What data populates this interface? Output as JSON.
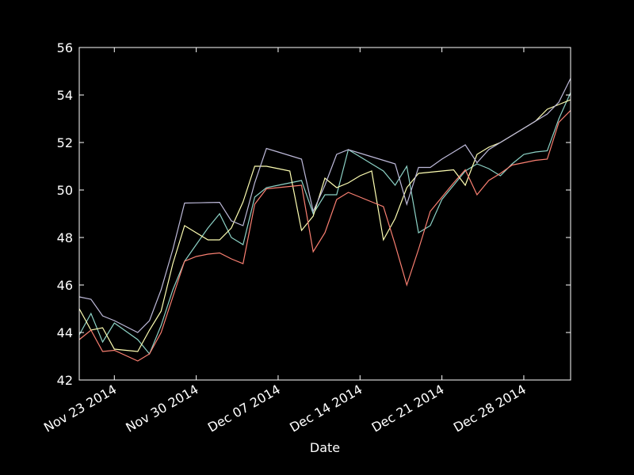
{
  "chart_data": {
    "type": "line",
    "xlabel": "Date",
    "ylabel": "",
    "title": "",
    "ylim": [
      42,
      56
    ],
    "xlim": [
      "2014-11-20",
      "2015-01-01"
    ],
    "y_ticks": [
      42,
      44,
      46,
      48,
      50,
      52,
      54,
      56
    ],
    "x_ticks": [
      {
        "date": "2014-11-23",
        "label": "Nov 23 2014"
      },
      {
        "date": "2014-11-30",
        "label": "Nov 30 2014"
      },
      {
        "date": "2014-12-07",
        "label": "Dec 07 2014"
      },
      {
        "date": "2014-12-14",
        "label": "Dec 14 2014"
      },
      {
        "date": "2014-12-21",
        "label": "Dec 21 2014"
      },
      {
        "date": "2014-12-28",
        "label": "Dec 28 2014"
      }
    ],
    "grid": false,
    "background": "#000000",
    "axis_color": "#ffffff",
    "x": [
      "2014-11-20",
      "2014-11-21",
      "2014-11-22",
      "2014-11-23",
      "2014-11-25",
      "2014-11-26",
      "2014-11-27",
      "2014-11-28",
      "2014-11-29",
      "2014-11-30",
      "2014-12-01",
      "2014-12-02",
      "2014-12-03",
      "2014-12-04",
      "2014-12-05",
      "2014-12-06",
      "2014-12-07",
      "2014-12-08",
      "2014-12-09",
      "2014-12-10",
      "2014-12-11",
      "2014-12-12",
      "2014-12-13",
      "2014-12-14",
      "2014-12-15",
      "2014-12-16",
      "2014-12-17",
      "2014-12-18",
      "2014-12-19",
      "2014-12-20",
      "2014-12-21",
      "2014-12-22",
      "2014-12-23",
      "2014-12-24",
      "2014-12-25",
      "2014-12-26",
      "2014-12-27",
      "2014-12-28",
      "2014-12-29",
      "2014-12-30",
      "2014-12-31",
      "2015-01-01"
    ],
    "series": [
      {
        "color": "#8dd3c7",
        "values": [
          43.9,
          44.8,
          43.6,
          44.4,
          43.7,
          43.1,
          44.3,
          45.8,
          47.0,
          47.7,
          48.4,
          49.0,
          48.0,
          47.7,
          49.7,
          50.1,
          50.2,
          50.3,
          50.4,
          49.0,
          49.8,
          49.8,
          51.7,
          51.4,
          51.1,
          50.8,
          50.2,
          51.0,
          48.2,
          48.5,
          49.6,
          50.2,
          50.8,
          51.1,
          50.9,
          50.6,
          51.1,
          51.5,
          51.6,
          51.65,
          53.0,
          54.1
        ]
      },
      {
        "color": "#ffffb3",
        "values": [
          45.0,
          44.1,
          44.2,
          43.3,
          43.2,
          44.1,
          44.9,
          46.9,
          48.5,
          48.2,
          47.9,
          47.9,
          48.4,
          49.5,
          51.0,
          51.0,
          50.9,
          50.8,
          48.3,
          48.9,
          50.5,
          50.1,
          50.3,
          50.6,
          50.8,
          47.9,
          48.8,
          50.1,
          50.7,
          50.75,
          50.8,
          50.85,
          50.2,
          51.5,
          51.8,
          52.0,
          52.3,
          52.6,
          52.9,
          53.4,
          53.6,
          53.8
        ]
      },
      {
        "color": "#bebada",
        "values": [
          45.5,
          45.4,
          44.7,
          44.5,
          44.0,
          44.5,
          45.8,
          47.5,
          49.45,
          49.46,
          49.47,
          49.48,
          48.7,
          48.5,
          50.3,
          51.75,
          51.6,
          51.45,
          51.3,
          49.1,
          50.2,
          51.5,
          51.7,
          51.55,
          51.4,
          51.25,
          51.1,
          49.4,
          50.95,
          50.95,
          51.3,
          51.6,
          51.9,
          51.15,
          51.7,
          52.0,
          52.3,
          52.6,
          52.9,
          53.2,
          53.7,
          54.7
        ]
      },
      {
        "color": "#fb8072",
        "values": [
          43.7,
          44.1,
          43.2,
          43.25,
          42.8,
          43.1,
          44.0,
          45.5,
          47.0,
          47.2,
          47.3,
          47.35,
          47.1,
          46.9,
          49.4,
          50.05,
          50.1,
          50.15,
          50.2,
          47.4,
          48.2,
          49.6,
          49.9,
          49.7,
          49.5,
          49.3,
          47.7,
          46.0,
          47.5,
          49.1,
          49.7,
          50.3,
          50.85,
          49.8,
          50.4,
          50.7,
          51.05,
          51.15,
          51.25,
          51.3,
          52.85,
          53.35
        ]
      }
    ]
  }
}
